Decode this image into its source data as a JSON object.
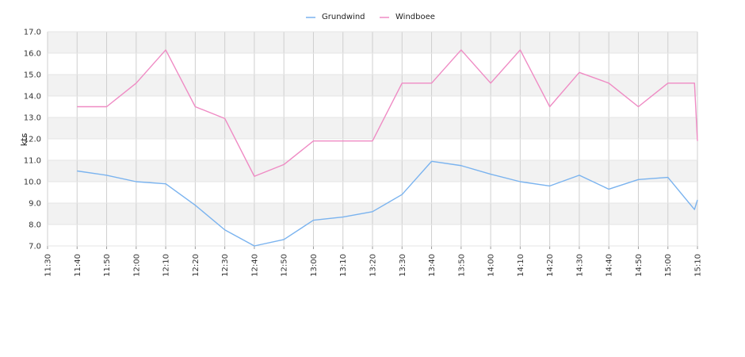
{
  "chart_data": {
    "type": "line",
    "title": "",
    "xlabel": "",
    "ylabel": "kts",
    "ylim": [
      7.0,
      17.0
    ],
    "yticks": [
      "7.0",
      "8.0",
      "9.0",
      "10.0",
      "11.0",
      "12.0",
      "13.0",
      "14.0",
      "15.0",
      "16.0",
      "17.0"
    ],
    "x_ticks": [
      "11:30",
      "11:40",
      "11:50",
      "12:00",
      "12:10",
      "12:20",
      "12:30",
      "12:40",
      "12:50",
      "13:00",
      "13:10",
      "13:20",
      "13:30",
      "13:40",
      "13:50",
      "14:00",
      "14:10",
      "14:20",
      "14:30",
      "14:40",
      "14:50",
      "15:00",
      "15:10"
    ],
    "grid": true,
    "legend_position": "top-center",
    "series": [
      {
        "name": "Grundwind",
        "color": "#7ab3ef",
        "points": [
          [
            "11:40",
            10.5
          ],
          [
            "11:50",
            10.3
          ],
          [
            "12:00",
            10.0
          ],
          [
            "12:10",
            9.9
          ],
          [
            "12:20",
            8.9
          ],
          [
            "12:30",
            7.75
          ],
          [
            "12:40",
            7.0
          ],
          [
            "12:50",
            7.3
          ],
          [
            "13:00",
            8.2
          ],
          [
            "13:10",
            8.35
          ],
          [
            "13:20",
            8.6
          ],
          [
            "13:30",
            9.4
          ],
          [
            "13:40",
            10.95
          ],
          [
            "13:50",
            10.75
          ],
          [
            "14:00",
            10.35
          ],
          [
            "14:10",
            10.0
          ],
          [
            "14:20",
            9.8
          ],
          [
            "14:30",
            10.3
          ],
          [
            "14:40",
            9.65
          ],
          [
            "14:50",
            10.1
          ],
          [
            "15:00",
            10.2
          ],
          [
            "15:09",
            8.7
          ],
          [
            "15:10",
            9.15
          ]
        ]
      },
      {
        "name": "Windboee",
        "color": "#ef8bc4",
        "points": [
          [
            "11:40",
            13.5
          ],
          [
            "11:50",
            13.5
          ],
          [
            "12:00",
            14.6
          ],
          [
            "12:10",
            16.15
          ],
          [
            "12:20",
            13.5
          ],
          [
            "12:30",
            12.95
          ],
          [
            "12:40",
            10.25
          ],
          [
            "12:50",
            10.8
          ],
          [
            "13:00",
            11.9
          ],
          [
            "13:10",
            11.9
          ],
          [
            "13:20",
            11.9
          ],
          [
            "13:30",
            14.6
          ],
          [
            "13:40",
            14.6
          ],
          [
            "13:50",
            16.15
          ],
          [
            "14:00",
            14.6
          ],
          [
            "14:10",
            16.15
          ],
          [
            "14:20",
            13.5
          ],
          [
            "14:30",
            15.1
          ],
          [
            "14:40",
            14.6
          ],
          [
            "14:50",
            13.5
          ],
          [
            "15:00",
            14.6
          ],
          [
            "15:09",
            14.6
          ],
          [
            "15:10",
            11.9
          ]
        ]
      }
    ]
  }
}
